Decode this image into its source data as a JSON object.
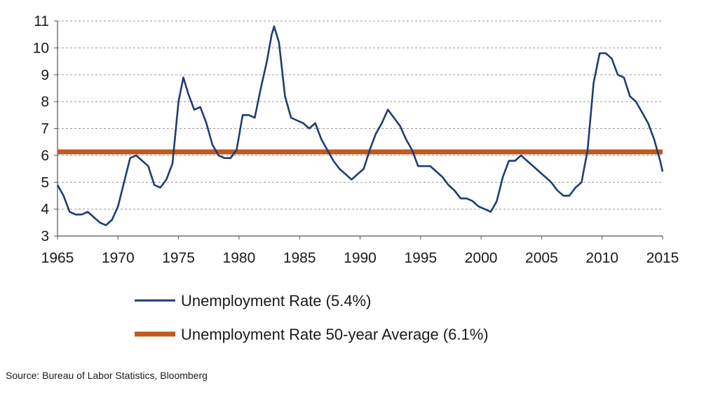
{
  "chart_data": {
    "type": "line",
    "xlim": [
      1965,
      2015
    ],
    "ylim": [
      3,
      11
    ],
    "x_ticks": [
      1965,
      1970,
      1975,
      1980,
      1985,
      1990,
      1995,
      2000,
      2005,
      2010,
      2015
    ],
    "y_ticks": [
      3,
      4,
      5,
      6,
      7,
      8,
      9,
      10,
      11
    ],
    "grid": "horizontal dashed",
    "series": [
      {
        "name": "Unemployment Rate (5.4%)",
        "color": "#1f3d73",
        "x": [
          1965.0,
          1965.5,
          1966.0,
          1966.5,
          1967.0,
          1967.5,
          1968.0,
          1968.5,
          1969.0,
          1969.5,
          1970.0,
          1970.5,
          1971.0,
          1971.5,
          1972.0,
          1972.5,
          1973.0,
          1973.5,
          1974.0,
          1974.5,
          1975.0,
          1975.4,
          1975.8,
          1976.3,
          1976.8,
          1977.3,
          1977.8,
          1978.3,
          1978.8,
          1979.3,
          1979.8,
          1980.3,
          1980.8,
          1981.3,
          1981.8,
          1982.3,
          1982.7,
          1982.9,
          1983.3,
          1983.8,
          1984.3,
          1984.8,
          1985.3,
          1985.8,
          1986.3,
          1986.8,
          1987.3,
          1987.8,
          1988.3,
          1988.8,
          1989.3,
          1989.8,
          1990.3,
          1990.8,
          1991.3,
          1991.8,
          1992.3,
          1992.8,
          1993.3,
          1993.8,
          1994.3,
          1994.8,
          1995.3,
          1995.8,
          1996.3,
          1996.8,
          1997.3,
          1997.8,
          1998.3,
          1998.8,
          1999.3,
          1999.8,
          2000.3,
          2000.8,
          2001.3,
          2001.8,
          2002.3,
          2002.8,
          2003.3,
          2003.8,
          2004.3,
          2004.8,
          2005.3,
          2005.8,
          2006.3,
          2006.8,
          2007.3,
          2007.8,
          2008.3,
          2008.8,
          2009.3,
          2009.8,
          2010.3,
          2010.8,
          2011.3,
          2011.8,
          2012.3,
          2012.8,
          2013.3,
          2013.8,
          2014.3,
          2014.8,
          2015.0
        ],
        "y": [
          4.9,
          4.5,
          3.9,
          3.8,
          3.8,
          3.9,
          3.7,
          3.5,
          3.4,
          3.6,
          4.1,
          5.0,
          5.9,
          6.0,
          5.8,
          5.6,
          4.9,
          4.8,
          5.1,
          5.7,
          8.0,
          8.9,
          8.3,
          7.7,
          7.8,
          7.2,
          6.4,
          6.0,
          5.9,
          5.9,
          6.2,
          7.5,
          7.5,
          7.4,
          8.5,
          9.5,
          10.5,
          10.8,
          10.2,
          8.2,
          7.4,
          7.3,
          7.2,
          7.0,
          7.2,
          6.6,
          6.2,
          5.8,
          5.5,
          5.3,
          5.1,
          5.3,
          5.5,
          6.2,
          6.8,
          7.2,
          7.7,
          7.4,
          7.1,
          6.6,
          6.2,
          5.6,
          5.6,
          5.6,
          5.4,
          5.2,
          4.9,
          4.7,
          4.4,
          4.4,
          4.3,
          4.1,
          4.0,
          3.9,
          4.3,
          5.2,
          5.8,
          5.8,
          6.0,
          5.8,
          5.6,
          5.4,
          5.2,
          5.0,
          4.7,
          4.5,
          4.5,
          4.8,
          5.0,
          6.2,
          8.7,
          9.8,
          9.8,
          9.6,
          9.0,
          8.9,
          8.2,
          8.0,
          7.6,
          7.2,
          6.6,
          5.8,
          5.4
        ]
      },
      {
        "name": "Unemployment Rate 50-year Average (6.1%)",
        "color": "#c0591c",
        "x": [
          1965,
          2015
        ],
        "y": [
          6.13,
          6.13
        ]
      }
    ]
  },
  "source": "Source: Bureau of Labor Statistics, Bloomberg"
}
